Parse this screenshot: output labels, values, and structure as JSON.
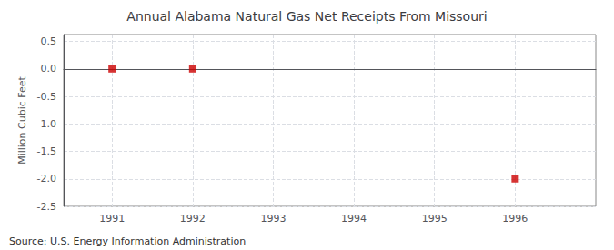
{
  "chart_data": {
    "type": "scatter",
    "title": "Annual Alabama Natural Gas Net Receipts From Missouri",
    "ylabel": "Million Cubic Feet",
    "annotations": [
      "Source: U.S. Energy Information Administration"
    ],
    "x": [
      1991,
      1992,
      1996
    ],
    "values": [
      0.0,
      0.0,
      -2.0
    ],
    "color": "#cc0000",
    "marker": "square",
    "xlim": [
      1990.4,
      1997.0
    ],
    "xticks": [
      1991,
      1992,
      1993,
      1994,
      1995,
      1996
    ],
    "ylim": [
      -2.5,
      0.625
    ],
    "yticks": [
      0.5,
      {
        "value": 0.0,
        "label": "0.0"
      },
      -0.5,
      {
        "value": -1.0,
        "label": "-1.0"
      },
      -1.5,
      {
        "value": -2.0,
        "label": "-2.0"
      },
      -2.5
    ],
    "grid": true
  }
}
